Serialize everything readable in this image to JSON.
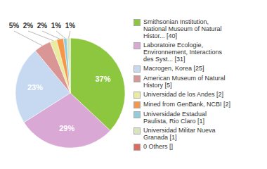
{
  "chart_data": {
    "type": "pie",
    "categories": [
      "Smithsonian Institution,\nNational Museum of Natural\nHistor... [40]",
      "Laboratoire Ecologie,\nEnvironnement, Interactions\ndes Syst... [31]",
      "Macrogen, Korea [25]",
      "American Museum of Natural\nHistory [5]",
      "Universidad de los Andes [2]",
      "Mined from GenBank, NCBI [2]",
      "Universidade Estadual\nPaulista, Rio Claro [1]",
      "Universidad Militar Nueva\nGranada [1]",
      "0 Others []"
    ],
    "values": [
      37,
      29,
      23,
      5,
      2,
      2,
      1,
      1,
      0.0009
    ],
    "value_labels": [
      "37%",
      "29%",
      "23%",
      "5%",
      "2%",
      "2%",
      "1%",
      "1%",
      null
    ],
    "colors": [
      "#8dc63f",
      "#d9a8d4",
      "#c6d9f1",
      "#d99694",
      "#ebeb9f",
      "#f79646",
      "#92cddc",
      "#d7e4bc",
      "#e06b5d"
    ],
    "data_labels": true,
    "legend": "right"
  }
}
